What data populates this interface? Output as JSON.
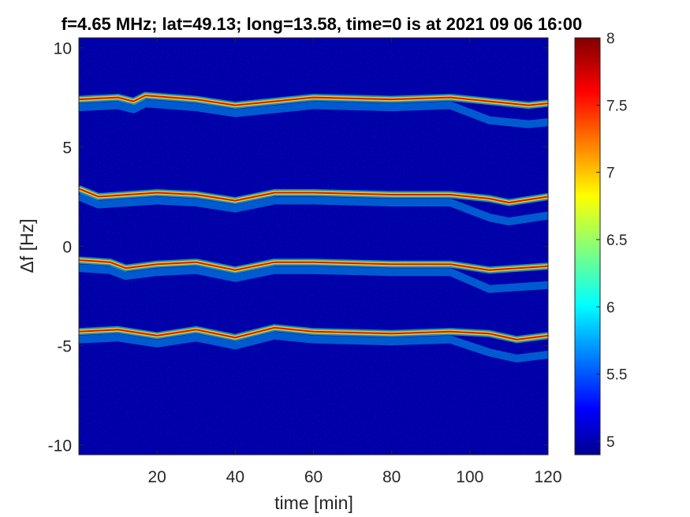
{
  "chart_data": {
    "type": "heatmap",
    "title": "f=4.65 MHz;  lat=49.13; long=13.58, time=0 is at 2021 09 06 16:00",
    "xlabel": "time [min]",
    "ylabel": "Δf [Hz]",
    "xlim": [
      0,
      120
    ],
    "ylim": [
      -10.5,
      10.5
    ],
    "xticks": [
      20,
      40,
      60,
      80,
      100,
      120
    ],
    "yticks": [
      -10,
      -5,
      0,
      5,
      10
    ],
    "colorbar": {
      "colormap": "jet",
      "clim": [
        4.9,
        8.0
      ],
      "ticks": [
        5,
        5.5,
        6,
        6.5,
        7,
        7.5,
        8
      ]
    },
    "background_level": 5.0,
    "traces": [
      {
        "name": "",
        "t": [
          0,
          10,
          14,
          17,
          30,
          40,
          60,
          80,
          95,
          105,
          115,
          120
        ],
        "df": [
          7.4,
          7.5,
          7.3,
          7.6,
          7.4,
          7.1,
          7.5,
          7.4,
          7.5,
          7.3,
          7.1,
          7.2
        ]
      },
      {
        "name": "",
        "t": [
          0,
          5,
          20,
          30,
          40,
          50,
          60,
          80,
          95,
          105,
          110,
          120
        ],
        "df": [
          2.9,
          2.5,
          2.7,
          2.6,
          2.3,
          2.7,
          2.7,
          2.6,
          2.6,
          2.4,
          2.2,
          2.5
        ]
      },
      {
        "name": "",
        "t": [
          0,
          8,
          12,
          20,
          30,
          40,
          50,
          60,
          80,
          95,
          105,
          120
        ],
        "df": [
          -0.7,
          -0.8,
          -1.1,
          -0.9,
          -0.8,
          -1.2,
          -0.8,
          -0.8,
          -0.9,
          -0.9,
          -1.2,
          -1.0
        ]
      },
      {
        "name": "",
        "t": [
          0,
          10,
          20,
          30,
          40,
          50,
          60,
          80,
          95,
          105,
          112,
          120
        ],
        "df": [
          -4.3,
          -4.2,
          -4.5,
          -4.2,
          -4.6,
          -4.1,
          -4.3,
          -4.4,
          -4.3,
          -4.4,
          -4.7,
          -4.5
        ]
      }
    ]
  }
}
